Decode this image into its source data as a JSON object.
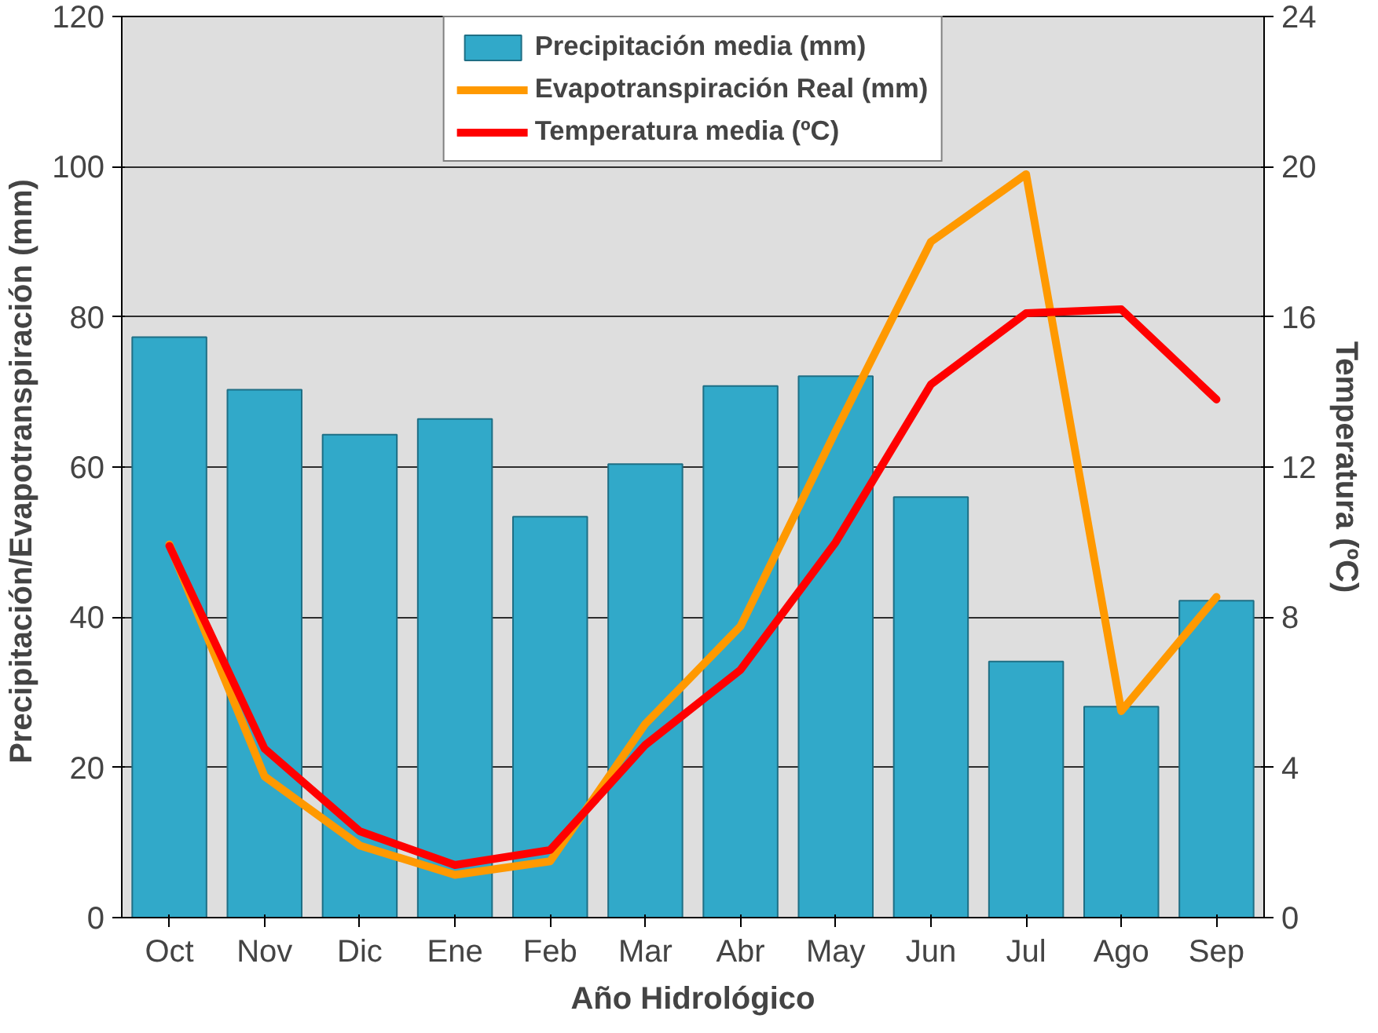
{
  "chart_data": {
    "type": "bar",
    "xlabel": "Año Hidrológico",
    "ylabel": "Precipitación/Evapotranspiración  (mm)",
    "y2label": "Temperatura (ºC)",
    "categories": [
      "Oct",
      "Nov",
      "Dic",
      "Ene",
      "Feb",
      "Mar",
      "Abr",
      "May",
      "Jun",
      "Jul",
      "Ago",
      "Sep"
    ],
    "series": [
      {
        "name": "Precipitación media (mm)",
        "color": "#31a9c9",
        "values": [
          77.3,
          70.3,
          64.3,
          66.4,
          53.4,
          60.4,
          70.8,
          72.1,
          56,
          34.1,
          28.1,
          42.2
        ]
      },
      {
        "name": "Evapotranspiración Real (mm)",
        "type": "line",
        "color": "#ff9900",
        "values": [
          49.7,
          18.8,
          9.6,
          5.7,
          7.5,
          25.8,
          38.8,
          64.8,
          90,
          99,
          27.5,
          42.7
        ]
      },
      {
        "name": "Temperatura media (ºC)",
        "type": "line",
        "axis": "y2",
        "color": "#ff0000",
        "values": [
          9.9,
          4.5,
          2.3,
          1.4,
          1.8,
          4.6,
          6.6,
          10,
          14.2,
          16.1,
          16.2,
          13.8
        ]
      }
    ],
    "ylim": [
      0,
      120
    ],
    "yticks": [
      0,
      20,
      40,
      60,
      80,
      100,
      120
    ],
    "y2lim": [
      0,
      24
    ],
    "y2ticks": [
      0,
      4,
      8,
      12,
      16,
      20,
      24
    ],
    "grid": "y",
    "legend": "top",
    "marker": "none",
    "line_style": "solid"
  }
}
